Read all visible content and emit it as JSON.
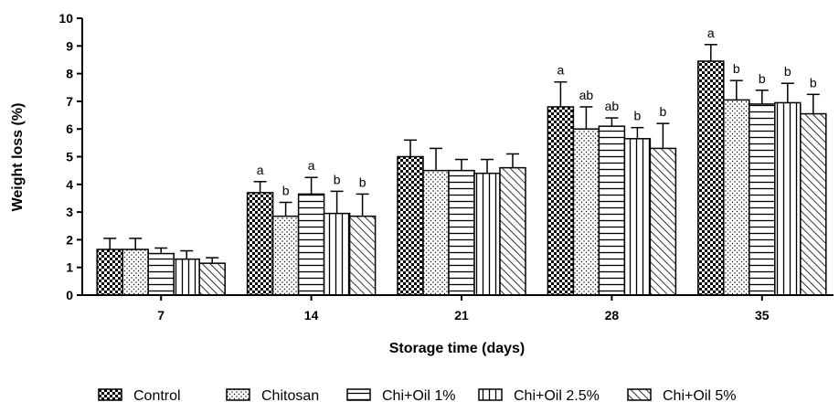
{
  "chart_data": {
    "type": "bar",
    "xlabel": "Storage time (days)",
    "ylabel": "Weight loss (%)",
    "ylim": [
      0,
      10
    ],
    "yticks": [
      "0",
      "1",
      "2",
      "3",
      "4",
      "5",
      "6",
      "7",
      "8",
      "9",
      "10"
    ],
    "categories": [
      "7",
      "14",
      "21",
      "28",
      "35"
    ],
    "grid": false,
    "legend_position": "bottom",
    "series": [
      {
        "name": "Control",
        "pattern": "checker",
        "values": [
          1.65,
          3.7,
          5.0,
          6.8,
          8.45
        ],
        "errors": [
          0.4,
          0.4,
          0.6,
          0.9,
          0.6
        ],
        "labels": [
          "",
          "a",
          "",
          "a",
          "a"
        ]
      },
      {
        "name": "Chitosan",
        "pattern": "dots",
        "values": [
          1.65,
          2.85,
          4.5,
          6.0,
          7.05
        ],
        "errors": [
          0.4,
          0.5,
          0.8,
          0.8,
          0.7
        ],
        "labels": [
          "",
          "b",
          "",
          "ab",
          "b"
        ]
      },
      {
        "name": "Chi+Oil 1%",
        "pattern": "horizontal",
        "values": [
          1.5,
          3.65,
          4.5,
          6.1,
          6.9
        ],
        "errors": [
          0.2,
          0.6,
          0.4,
          0.3,
          0.5
        ],
        "labels": [
          "",
          "a",
          "",
          "ab",
          "b"
        ]
      },
      {
        "name": "Chi+Oil 2.5%",
        "pattern": "vertical",
        "values": [
          1.3,
          2.95,
          4.4,
          5.65,
          6.95
        ],
        "errors": [
          0.3,
          0.8,
          0.5,
          0.4,
          0.7
        ],
        "labels": [
          "",
          "b",
          "",
          "b",
          "b"
        ]
      },
      {
        "name": "Chi+Oil 5%",
        "pattern": "diagonal",
        "values": [
          1.15,
          2.85,
          4.6,
          5.3,
          6.55
        ],
        "errors": [
          0.2,
          0.8,
          0.5,
          0.9,
          0.7
        ],
        "labels": [
          "",
          "b",
          "",
          "b",
          "b"
        ]
      }
    ]
  }
}
